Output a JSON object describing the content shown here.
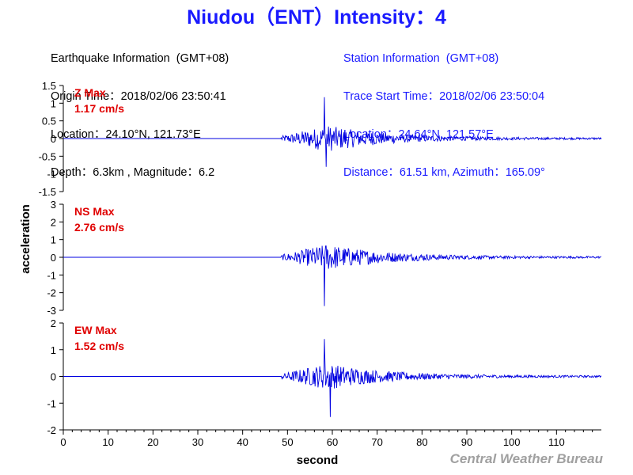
{
  "title": "Niudou（ENT）Intensity：4",
  "earthquake_info": {
    "header": "Earthquake Information  (GMT+08)",
    "origin_time": "Origin Time：2018/02/06 23:50:41",
    "location": "Location：24.10°N, 121.73°E",
    "depth_magnitude": "Depth：6.3km , Magnitude：6.2"
  },
  "station_info": {
    "header": "Station Information  (GMT+08)",
    "trace_start": "Trace Start Time：2018/02/06 23:50:04",
    "location": "Location：24.64°N, 121.57°E",
    "distance_azimuth": "Distance：61.51 km, Azimuth：165.09°"
  },
  "credit": "Central Weather Bureau",
  "colors": {
    "trace": "#0000e0",
    "title": "#1a1aff",
    "max_label": "#e00000",
    "credit": "#a0a0a0"
  },
  "chart_data": {
    "type": "line",
    "xlabel": "second",
    "ylabel": "acceleration",
    "xlim": [
      0,
      120
    ],
    "xticks": [
      0,
      10,
      20,
      30,
      40,
      50,
      60,
      70,
      80,
      90,
      100,
      110
    ],
    "panels": [
      {
        "name": "Z",
        "max_label": "Z Max",
        "max_value": "1.17 cm/s",
        "ylim": [
          -1.5,
          1.5
        ],
        "yticks": [
          -1.5,
          -1,
          -0.5,
          0,
          0.5,
          1,
          1.5
        ],
        "yticklabels": [
          "-1.5",
          "-1",
          "-0.5",
          "0",
          "0.5",
          "1",
          "1.5"
        ],
        "onset": 48.5,
        "peak_time": 58.2,
        "peak_value": 1.17,
        "min_time": 58.6,
        "min_value": -0.8
      },
      {
        "name": "NS",
        "max_label": "NS Max",
        "max_value": "2.76 cm/s",
        "ylim": [
          -3,
          3
        ],
        "yticks": [
          -3,
          -2,
          -1,
          0,
          1,
          2,
          3
        ],
        "yticklabels": [
          "-3",
          "-2",
          "-1",
          "0",
          "1",
          "2",
          "3"
        ],
        "onset": 48.5,
        "peak_time": 58.3,
        "peak_value": 1.4,
        "min_time": 58.2,
        "min_value": -2.76
      },
      {
        "name": "EW",
        "max_label": "EW Max",
        "max_value": "1.52 cm/s",
        "ylim": [
          -2,
          2
        ],
        "yticks": [
          -2,
          -1,
          0,
          1,
          2
        ],
        "yticklabels": [
          "-2",
          "-1",
          "0",
          "1",
          "2"
        ],
        "onset": 48.5,
        "peak_time": 58.2,
        "peak_value": 1.4,
        "min_time": 59.6,
        "min_value": -1.52
      }
    ]
  }
}
